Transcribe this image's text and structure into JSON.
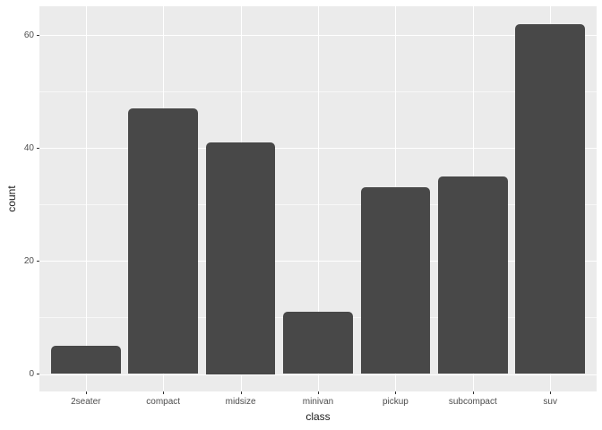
{
  "chart_data": {
    "type": "bar",
    "title": "",
    "xlabel": "class",
    "ylabel": "count",
    "categories": [
      "2seater",
      "compact",
      "midsize",
      "minivan",
      "pickup",
      "subcompact",
      "suv"
    ],
    "values": [
      5,
      47,
      41,
      11,
      33,
      35,
      62
    ],
    "y_ticks": [
      0,
      20,
      40,
      60
    ],
    "y_minor_ticks": [
      10,
      30,
      50
    ],
    "ylim": [
      -3.1,
      65.1
    ],
    "x_gridlines": "major vertical at each category center",
    "grid": "on",
    "legend_position": "none",
    "style": "ggplot2 theme_gray, dark grey bars with rounded tops on light grey panel"
  },
  "colors": {
    "panel_bg": "#EBEBEB",
    "plot_bg": "#FFFFFF",
    "grid_major": "#FFFFFF",
    "grid_minor": "rgba(255,255,255,0.6)",
    "bar_fill": "#484848",
    "tick_mark": "#333333",
    "axis_text": "#4D4D4D",
    "axis_title": "#1A1A1A"
  }
}
